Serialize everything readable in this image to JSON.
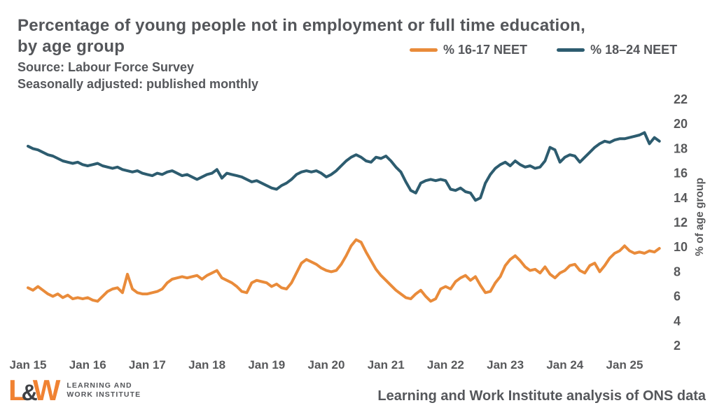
{
  "header": {
    "title_line1": "Percentage of young people not in employment or full time education,",
    "title_line2": "by age group",
    "source": "Source: Labour Force Survey",
    "note": "Seasonally adjusted: published monthly"
  },
  "legend": [
    {
      "label": "% 16-17 NEET",
      "color": "#E98B3A"
    },
    {
      "label": "% 18–24 NEET",
      "color": "#2D5C6F"
    }
  ],
  "footer": {
    "logo_l": "L",
    "logo_amp": "&",
    "logo_w": "W",
    "logo_text_line1": "LEARNING AND",
    "logo_text_line2": "WORK INSTITUTE",
    "credit": "Learning and Work Institute analysis of ONS data"
  },
  "colors": {
    "text_gray": "#55575B",
    "axis_label_gray": "#58595B",
    "gridline_gray": "#A8A8A8",
    "orange": "#E98B3A",
    "teal": "#2D5C6F"
  },
  "chart_data": {
    "type": "line",
    "title": "Percentage of young people not in employment or full time education, by age group",
    "xlabel": "",
    "ylabel": "% of age group",
    "ylim": [
      2,
      22
    ],
    "yticks": [
      2,
      4,
      6,
      8,
      10,
      12,
      14,
      16,
      18,
      20,
      22
    ],
    "grid": "horizontal",
    "legend_position": "top-right",
    "x_unit": "month",
    "x_start": "Jan 2015",
    "x_end": "Aug 2025",
    "x_tick_labels": [
      "Jan 15",
      "Jan 16",
      "Jan 17",
      "Jan 18",
      "Jan 19",
      "Jan 20",
      "Jan 21",
      "Jan 22",
      "Jan 23",
      "Jan 24",
      "Jan 25"
    ],
    "x_tick_month_index": [
      0,
      12,
      24,
      36,
      48,
      60,
      72,
      84,
      96,
      108,
      120
    ],
    "series": [
      {
        "name": "% 16-17 NEET",
        "color": "#E98B3A",
        "values": [
          6.7,
          6.5,
          6.8,
          6.5,
          6.2,
          6.0,
          6.2,
          5.9,
          6.1,
          5.8,
          5.9,
          5.8,
          5.9,
          5.7,
          5.6,
          6.0,
          6.4,
          6.6,
          6.7,
          6.3,
          7.8,
          6.6,
          6.3,
          6.2,
          6.2,
          6.3,
          6.4,
          6.6,
          7.1,
          7.4,
          7.5,
          7.6,
          7.5,
          7.6,
          7.7,
          7.4,
          7.7,
          7.9,
          8.1,
          7.5,
          7.3,
          7.1,
          6.8,
          6.4,
          6.3,
          7.1,
          7.3,
          7.2,
          7.1,
          6.8,
          7.0,
          6.7,
          6.6,
          7.1,
          7.9,
          8.7,
          9.0,
          8.8,
          8.6,
          8.3,
          8.1,
          8.0,
          8.1,
          8.6,
          9.3,
          10.1,
          10.6,
          10.4,
          9.6,
          8.9,
          8.2,
          7.7,
          7.3,
          6.9,
          6.5,
          6.2,
          5.9,
          5.8,
          6.2,
          6.5,
          6.0,
          5.6,
          5.8,
          6.6,
          6.8,
          6.6,
          7.2,
          7.5,
          7.7,
          7.3,
          7.6,
          6.9,
          6.3,
          6.4,
          7.1,
          7.6,
          8.5,
          9.0,
          9.3,
          8.9,
          8.4,
          8.1,
          8.2,
          7.9,
          8.4,
          7.8,
          7.5,
          7.9,
          8.1,
          8.5,
          8.6,
          8.1,
          7.9,
          8.5,
          8.7,
          8.0,
          8.5,
          9.1,
          9.5,
          9.7,
          10.1,
          9.7,
          9.5,
          9.6,
          9.5,
          9.7,
          9.6,
          9.9
        ]
      },
      {
        "name": "% 18–24 NEET",
        "color": "#2D5C6F",
        "values": [
          18.2,
          18.0,
          17.9,
          17.7,
          17.5,
          17.4,
          17.2,
          17.0,
          16.9,
          16.8,
          16.9,
          16.7,
          16.6,
          16.7,
          16.8,
          16.6,
          16.5,
          16.4,
          16.5,
          16.3,
          16.2,
          16.1,
          16.2,
          16.0,
          15.9,
          15.8,
          16.0,
          15.9,
          16.1,
          16.2,
          16.0,
          15.8,
          15.9,
          15.7,
          15.5,
          15.7,
          15.9,
          16.0,
          16.3,
          15.6,
          16.0,
          15.9,
          15.8,
          15.7,
          15.5,
          15.3,
          15.4,
          15.2,
          15.0,
          14.8,
          14.7,
          15.0,
          15.2,
          15.5,
          15.9,
          16.1,
          16.2,
          16.1,
          16.2,
          16.0,
          15.7,
          15.9,
          16.2,
          16.6,
          17.0,
          17.3,
          17.5,
          17.3,
          17.0,
          16.9,
          17.3,
          17.2,
          17.4,
          17.0,
          16.5,
          16.1,
          15.3,
          14.6,
          14.4,
          15.2,
          15.4,
          15.5,
          15.4,
          15.5,
          15.4,
          14.7,
          14.6,
          14.8,
          14.5,
          14.4,
          13.8,
          14.0,
          15.2,
          15.9,
          16.4,
          16.7,
          16.9,
          16.6,
          17.0,
          16.7,
          16.5,
          16.6,
          16.4,
          16.5,
          17.0,
          18.1,
          17.9,
          16.9,
          17.3,
          17.5,
          17.4,
          16.9,
          17.3,
          17.7,
          18.1,
          18.4,
          18.6,
          18.5,
          18.7,
          18.8,
          18.8,
          18.9,
          19.0,
          19.1,
          19.3,
          18.4,
          18.9,
          18.6
        ]
      }
    ]
  }
}
